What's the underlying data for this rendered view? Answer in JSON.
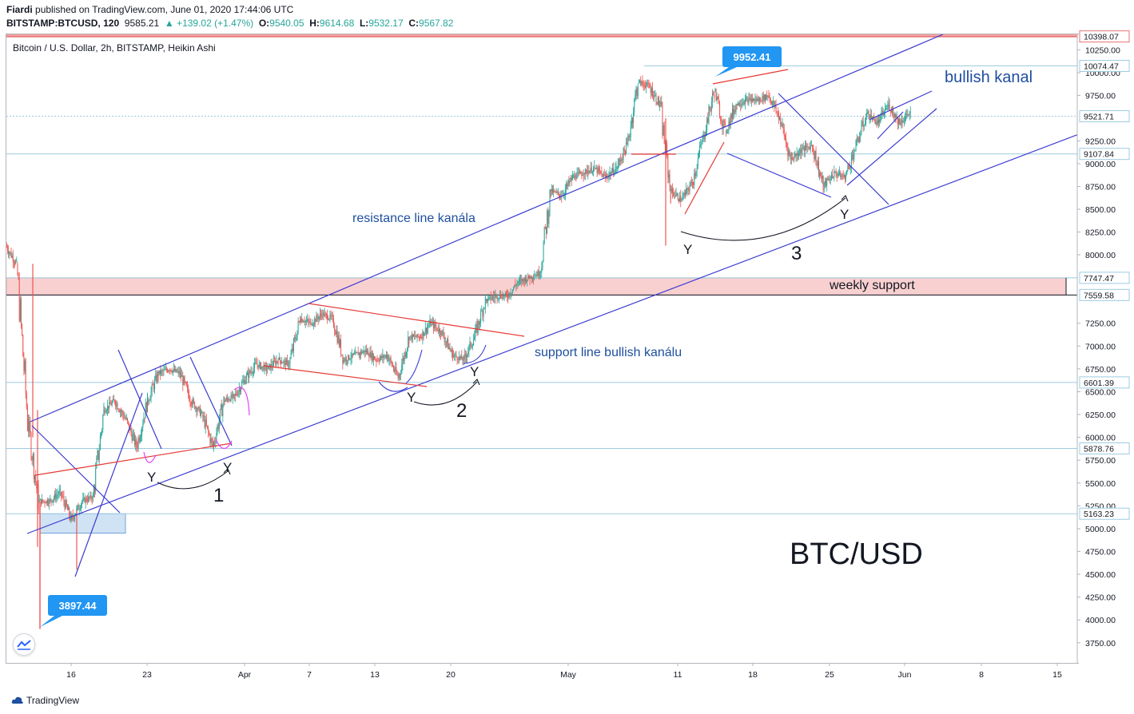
{
  "header": {
    "author": "Fiardi",
    "published": "published on TradingView.com, June 01, 2020 17:44:06 UTC",
    "symbol": "BITSTAMP:BTCUSD, 120",
    "price": "9585.21",
    "change": "▲ +139.02 (+1.47%)",
    "o_label": "O:",
    "o": "9540.05",
    "h_label": "H:",
    "h": "9614.68",
    "l_label": "L:",
    "l": "9532.17",
    "c_label": "C:",
    "c": "9567.82"
  },
  "legend_title": "Bitcoin / U.S. Dollar, 2h, BITSTAMP, Heikin Ashi",
  "footer": {
    "brand": "TradingView"
  },
  "colors": {
    "up": "#26a69a",
    "down": "#ef5350",
    "channel": "#3b3bd1",
    "trend": "#e53935",
    "annotation_text": "#1e4fa0"
  },
  "chart_data": {
    "type": "candlestick",
    "style": "Heikin Ashi",
    "symbol": "BTCUSD",
    "timeframe": "2h",
    "exchange": "BITSTAMP",
    "x_tick_labels": [
      "16",
      "23",
      "Apr",
      "7",
      "13",
      "20",
      "May",
      "11",
      "18",
      "25",
      "Jun",
      "8",
      "15"
    ],
    "y_tick_labels": [
      "10250.00",
      "10000.00",
      "9750.00",
      "9250.00",
      "9000.00",
      "8750.00",
      "8500.00",
      "8250.00",
      "8000.00",
      "7250.00",
      "7000.00",
      "6750.00",
      "6500.00",
      "6250.00",
      "6000.00",
      "5750.00",
      "5500.00",
      "5250.00",
      "5000.00",
      "4750.00",
      "4500.00",
      "4250.00",
      "4000.00",
      "3750.00"
    ],
    "price_markers": [
      {
        "label": "10398.07",
        "value": 10398.07,
        "style": "red"
      },
      {
        "label": "10074.47",
        "value": 10074.47
      },
      {
        "label": "9521.71",
        "value": 9521.71
      },
      {
        "label": "9107.84",
        "value": 9107.84
      },
      {
        "label": "7747.47",
        "value": 7747.47
      },
      {
        "label": "7559.58",
        "value": 7559.58
      },
      {
        "label": "6601.39",
        "value": 6601.39
      },
      {
        "label": "5878.76",
        "value": 5878.76
      },
      {
        "label": "5163.23",
        "value": 5163.23
      }
    ],
    "callouts": [
      {
        "label": "9952.41",
        "value": 9952.41,
        "date": "2020-05-14"
      },
      {
        "label": "3897.44",
        "value": 3897.44,
        "date": "2020-03-13"
      }
    ],
    "zones": [
      {
        "label": "weekly support",
        "from": 7559.58,
        "to": 7747.47,
        "color": "#f8d0d0"
      },
      {
        "label": "",
        "from": 4950,
        "to": 5163.23,
        "color": "#cfe3f5"
      }
    ],
    "annotations": [
      {
        "text": "resistance line kanála"
      },
      {
        "text": "support line bullish kanálu"
      },
      {
        "text": "bullish kanal"
      },
      {
        "text": "BTC/USD"
      },
      {
        "text": "1"
      },
      {
        "text": "2"
      },
      {
        "text": "3"
      },
      {
        "text": "Y"
      }
    ],
    "price_path": [
      {
        "date": "2020-03-10",
        "close": 8100
      },
      {
        "date": "2020-03-11",
        "close": 7900
      },
      {
        "date": "2020-03-12",
        "close": 6200
      },
      {
        "date": "2020-03-13",
        "close": 5300
      },
      {
        "date": "2020-03-14",
        "close": 5300
      },
      {
        "date": "2020-03-15",
        "close": 5400
      },
      {
        "date": "2020-03-16",
        "close": 5100
      },
      {
        "date": "2020-03-17",
        "close": 5300
      },
      {
        "date": "2020-03-18",
        "close": 5350
      },
      {
        "date": "2020-03-19",
        "close": 6300
      },
      {
        "date": "2020-03-20",
        "close": 6400
      },
      {
        "date": "2020-03-21",
        "close": 6200
      },
      {
        "date": "2020-03-22",
        "close": 5900
      },
      {
        "date": "2020-03-23",
        "close": 6400
      },
      {
        "date": "2020-03-24",
        "close": 6700
      },
      {
        "date": "2020-03-25",
        "close": 6750
      },
      {
        "date": "2020-03-26",
        "close": 6700
      },
      {
        "date": "2020-03-27",
        "close": 6400
      },
      {
        "date": "2020-03-28",
        "close": 6250
      },
      {
        "date": "2020-03-29",
        "close": 5900
      },
      {
        "date": "2020-03-30",
        "close": 6400
      },
      {
        "date": "2020-03-31",
        "close": 6450
      },
      {
        "date": "2020-04-01",
        "close": 6650
      },
      {
        "date": "2020-04-02",
        "close": 6800
      },
      {
        "date": "2020-04-03",
        "close": 6750
      },
      {
        "date": "2020-04-04",
        "close": 6850
      },
      {
        "date": "2020-04-05",
        "close": 6800
      },
      {
        "date": "2020-04-06",
        "close": 7300
      },
      {
        "date": "2020-04-07",
        "close": 7250
      },
      {
        "date": "2020-04-08",
        "close": 7350
      },
      {
        "date": "2020-04-09",
        "close": 7300
      },
      {
        "date": "2020-04-10",
        "close": 6850
      },
      {
        "date": "2020-04-11",
        "close": 6900
      },
      {
        "date": "2020-04-12",
        "close": 6950
      },
      {
        "date": "2020-04-13",
        "close": 6850
      },
      {
        "date": "2020-04-14",
        "close": 6900
      },
      {
        "date": "2020-04-15",
        "close": 6650
      },
      {
        "date": "2020-04-16",
        "close": 7100
      },
      {
        "date": "2020-04-17",
        "close": 7100
      },
      {
        "date": "2020-04-18",
        "close": 7250
      },
      {
        "date": "2020-04-19",
        "close": 7150
      },
      {
        "date": "2020-04-20",
        "close": 6900
      },
      {
        "date": "2020-04-21",
        "close": 6850
      },
      {
        "date": "2020-04-22",
        "close": 7100
      },
      {
        "date": "2020-04-23",
        "close": 7500
      },
      {
        "date": "2020-04-24",
        "close": 7550
      },
      {
        "date": "2020-04-25",
        "close": 7550
      },
      {
        "date": "2020-04-26",
        "close": 7700
      },
      {
        "date": "2020-04-27",
        "close": 7750
      },
      {
        "date": "2020-04-28",
        "close": 7800
      },
      {
        "date": "2020-04-29",
        "close": 8700
      },
      {
        "date": "2020-04-30",
        "close": 8650
      },
      {
        "date": "2020-05-01",
        "close": 8850
      },
      {
        "date": "2020-05-02",
        "close": 8900
      },
      {
        "date": "2020-05-03",
        "close": 8950
      },
      {
        "date": "2020-05-04",
        "close": 8850
      },
      {
        "date": "2020-05-05",
        "close": 8950
      },
      {
        "date": "2020-05-06",
        "close": 9200
      },
      {
        "date": "2020-05-07",
        "close": 9900
      },
      {
        "date": "2020-05-08",
        "close": 9850
      },
      {
        "date": "2020-05-09",
        "close": 9650
      },
      {
        "date": "2020-05-10",
        "close": 8700
      },
      {
        "date": "2020-05-11",
        "close": 8600
      },
      {
        "date": "2020-05-12",
        "close": 8800
      },
      {
        "date": "2020-05-13",
        "close": 9300
      },
      {
        "date": "2020-05-14",
        "close": 9800
      },
      {
        "date": "2020-05-15",
        "close": 9350
      },
      {
        "date": "2020-05-16",
        "close": 9650
      },
      {
        "date": "2020-05-17",
        "close": 9700
      },
      {
        "date": "2020-05-18",
        "close": 9700
      },
      {
        "date": "2020-05-19",
        "close": 9750
      },
      {
        "date": "2020-05-20",
        "close": 9500
      },
      {
        "date": "2020-05-21",
        "close": 9050
      },
      {
        "date": "2020-05-22",
        "close": 9150
      },
      {
        "date": "2020-05-23",
        "close": 9200
      },
      {
        "date": "2020-05-24",
        "close": 8750
      },
      {
        "date": "2020-05-25",
        "close": 8900
      },
      {
        "date": "2020-05-26",
        "close": 8850
      },
      {
        "date": "2020-05-27",
        "close": 9200
      },
      {
        "date": "2020-05-28",
        "close": 9550
      },
      {
        "date": "2020-05-29",
        "close": 9450
      },
      {
        "date": "2020-05-30",
        "close": 9650
      },
      {
        "date": "2020-05-31",
        "close": 9450
      },
      {
        "date": "2020-06-01",
        "close": 9568
      }
    ]
  }
}
